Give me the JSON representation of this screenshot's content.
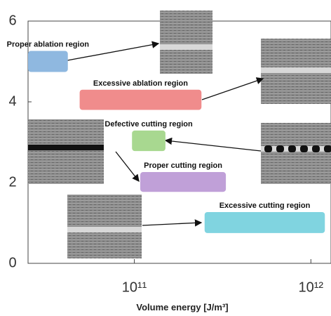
{
  "chart_data": {
    "type": "range",
    "x_label": "Volume energy [J/m³]",
    "xscale": "log",
    "xlim": [
      25000000000,
      1300000000000
    ],
    "ylim": [
      0,
      6
    ],
    "yticks": [
      0,
      2,
      4,
      6
    ],
    "xticks": [
      {
        "value": 100000000000,
        "label": "10¹¹"
      },
      {
        "value": 1000000000000,
        "label": "10¹²"
      }
    ],
    "regions": [
      {
        "name": "Proper ablation region",
        "color": "#8fb8e0",
        "x": [
          25000000000,
          42000000000
        ],
        "y": [
          4.74,
          5.26
        ]
      },
      {
        "name": "Excessive ablation region",
        "color": "#f08c8c",
        "x": [
          49000000000,
          240000000000
        ],
        "y": [
          3.8,
          4.3
        ]
      },
      {
        "name": "Defective cutting region",
        "color": "#a8d890",
        "x": [
          97000000000,
          150000000000
        ],
        "y": [
          2.78,
          3.29
        ]
      },
      {
        "name": "Proper cutting region",
        "color": "#c0a0d8",
        "x": [
          108000000000,
          330000000000
        ],
        "y": [
          1.77,
          2.26
        ]
      },
      {
        "name": "Excessive cutting region",
        "color": "#80d4e0",
        "x": [
          250000000000,
          1200000000000
        ],
        "y": [
          0.75,
          1.27
        ]
      }
    ]
  }
}
